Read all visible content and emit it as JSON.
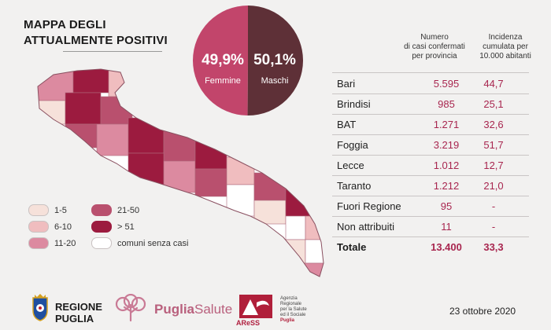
{
  "title": {
    "line1": "MAPPA DEGLI",
    "line2": "ATTUALMENTE POSITIVI"
  },
  "gender": {
    "female_pct": "49,9%",
    "female_label": "Femmine",
    "male_pct": "50,1%",
    "male_label": "Maschi",
    "female_share": 0.499,
    "male_share": 0.501,
    "female_color": "#c2456b",
    "male_color": "#5e3037"
  },
  "legend": {
    "items": [
      {
        "label": "1-5",
        "color": "#f6e1da"
      },
      {
        "label": "6-10",
        "color": "#f0bdbf"
      },
      {
        "label": "11-20",
        "color": "#dc8aa0"
      },
      {
        "label": "21-50",
        "color": "#b9506e"
      },
      {
        "label": "> 51",
        "color": "#9c1b3f"
      },
      {
        "label": "comuni senza casi",
        "color": "#ffffff"
      }
    ]
  },
  "table": {
    "header_cases": [
      "Numero",
      "di casi confermati",
      "per provincia"
    ],
    "header_incidence": [
      "Incidenza",
      "cumulata per",
      "10.000 abitanti"
    ],
    "rows": [
      {
        "name": "Bari",
        "cases": "5.595",
        "incidence": "44,7"
      },
      {
        "name": "Brindisi",
        "cases": "985",
        "incidence": "25,1"
      },
      {
        "name": "BAT",
        "cases": "1.271",
        "incidence": "32,6"
      },
      {
        "name": "Foggia",
        "cases": "3.219",
        "incidence": "51,7"
      },
      {
        "name": "Lecce",
        "cases": "1.012",
        "incidence": "12,7"
      },
      {
        "name": "Taranto",
        "cases": "1.212",
        "incidence": "21,0"
      },
      {
        "name": "Fuori Regione",
        "cases": "95",
        "incidence": "-"
      },
      {
        "name": "Non attribuiti",
        "cases": "11",
        "incidence": "-"
      }
    ],
    "total": {
      "name": "Totale",
      "cases": "13.400",
      "incidence": "33,3"
    }
  },
  "footer": {
    "region_line1": "REGIONE",
    "region_line2": "PUGLIA",
    "puglia_salute_a": "Puglia",
    "puglia_salute_b": "Salute",
    "ares_lines": [
      "Agenzia",
      "Regionale",
      "per la Salute",
      "ed il Sociale",
      "Puglia"
    ],
    "ares_name": "AReSS",
    "date": "23 ottobre 2020"
  },
  "colors": {
    "accent": "#a8264f",
    "background": "#f2f1f0"
  }
}
